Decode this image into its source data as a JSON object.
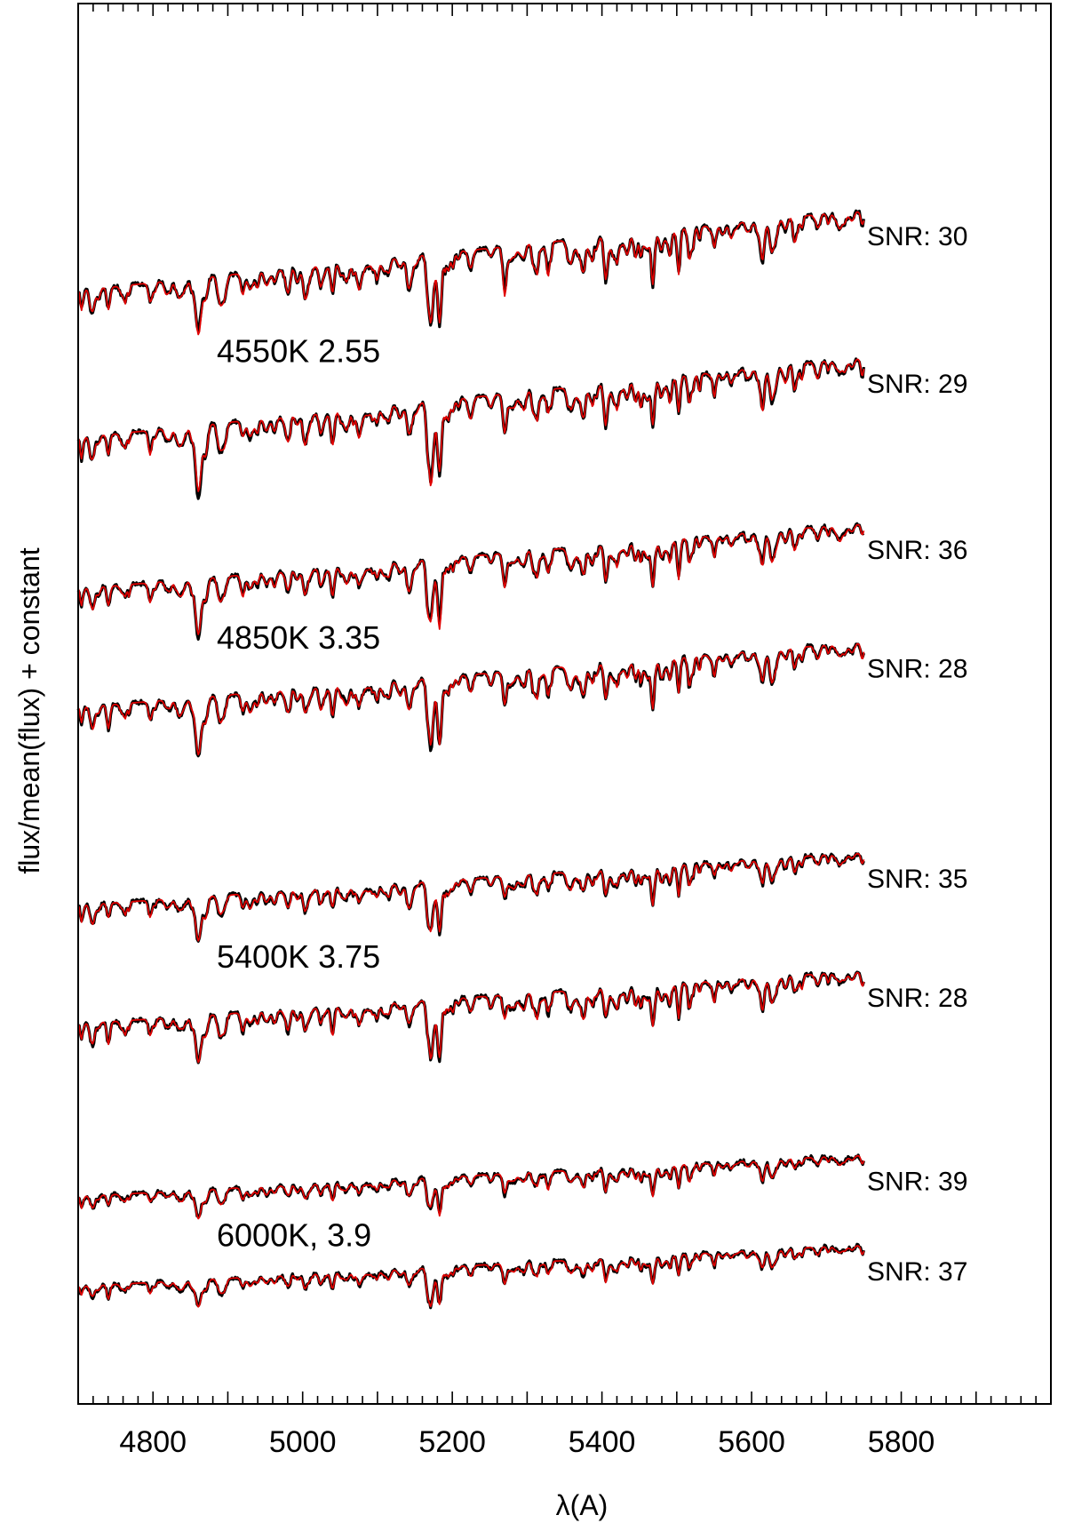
{
  "chart_data": {
    "type": "line",
    "xlabel": "λ(A)",
    "ylabel": "flux/mean(flux) + constant",
    "xlim": [
      4700,
      6000
    ],
    "x_ticks": [
      4800,
      5000,
      5200,
      5400,
      5600,
      5800
    ],
    "x_range": [
      4700,
      5750
    ],
    "y_range": [
      0,
      3.45
    ],
    "grid": false,
    "colors": {
      "observed": "#000000",
      "model": "#e00000"
    },
    "groups": [
      {
        "label": "4550K 2.55",
        "spectra": [
          {
            "snr_label": "SNR: 30",
            "offset": 2.85,
            "slope": 0.64,
            "depth": 1.0
          },
          {
            "snr_label": "SNR: 29",
            "offset": 2.44,
            "slope": 0.64,
            "depth": 1.0
          }
        ]
      },
      {
        "label": "4850K 3.35",
        "spectra": [
          {
            "snr_label": "SNR: 36",
            "offset": 2.02,
            "slope": 0.52,
            "depth": 0.85
          },
          {
            "snr_label": "SNR: 28",
            "offset": 1.69,
            "slope": 0.52,
            "depth": 0.9
          }
        ]
      },
      {
        "label": "5400K 3.75",
        "spectra": [
          {
            "snr_label": "SNR: 35",
            "offset": 1.14,
            "slope": 0.42,
            "depth": 0.7
          },
          {
            "snr_label": "SNR: 28",
            "offset": 0.81,
            "slope": 0.42,
            "depth": 0.8
          }
        ]
      },
      {
        "label": "6000K, 3.9",
        "spectra": [
          {
            "snr_label": "SNR: 39",
            "offset": 0.33,
            "slope": 0.33,
            "depth": 0.5
          },
          {
            "snr_label": "SNR: 37",
            "offset": 0.08,
            "slope": 0.33,
            "depth": 0.5
          }
        ]
      }
    ]
  }
}
